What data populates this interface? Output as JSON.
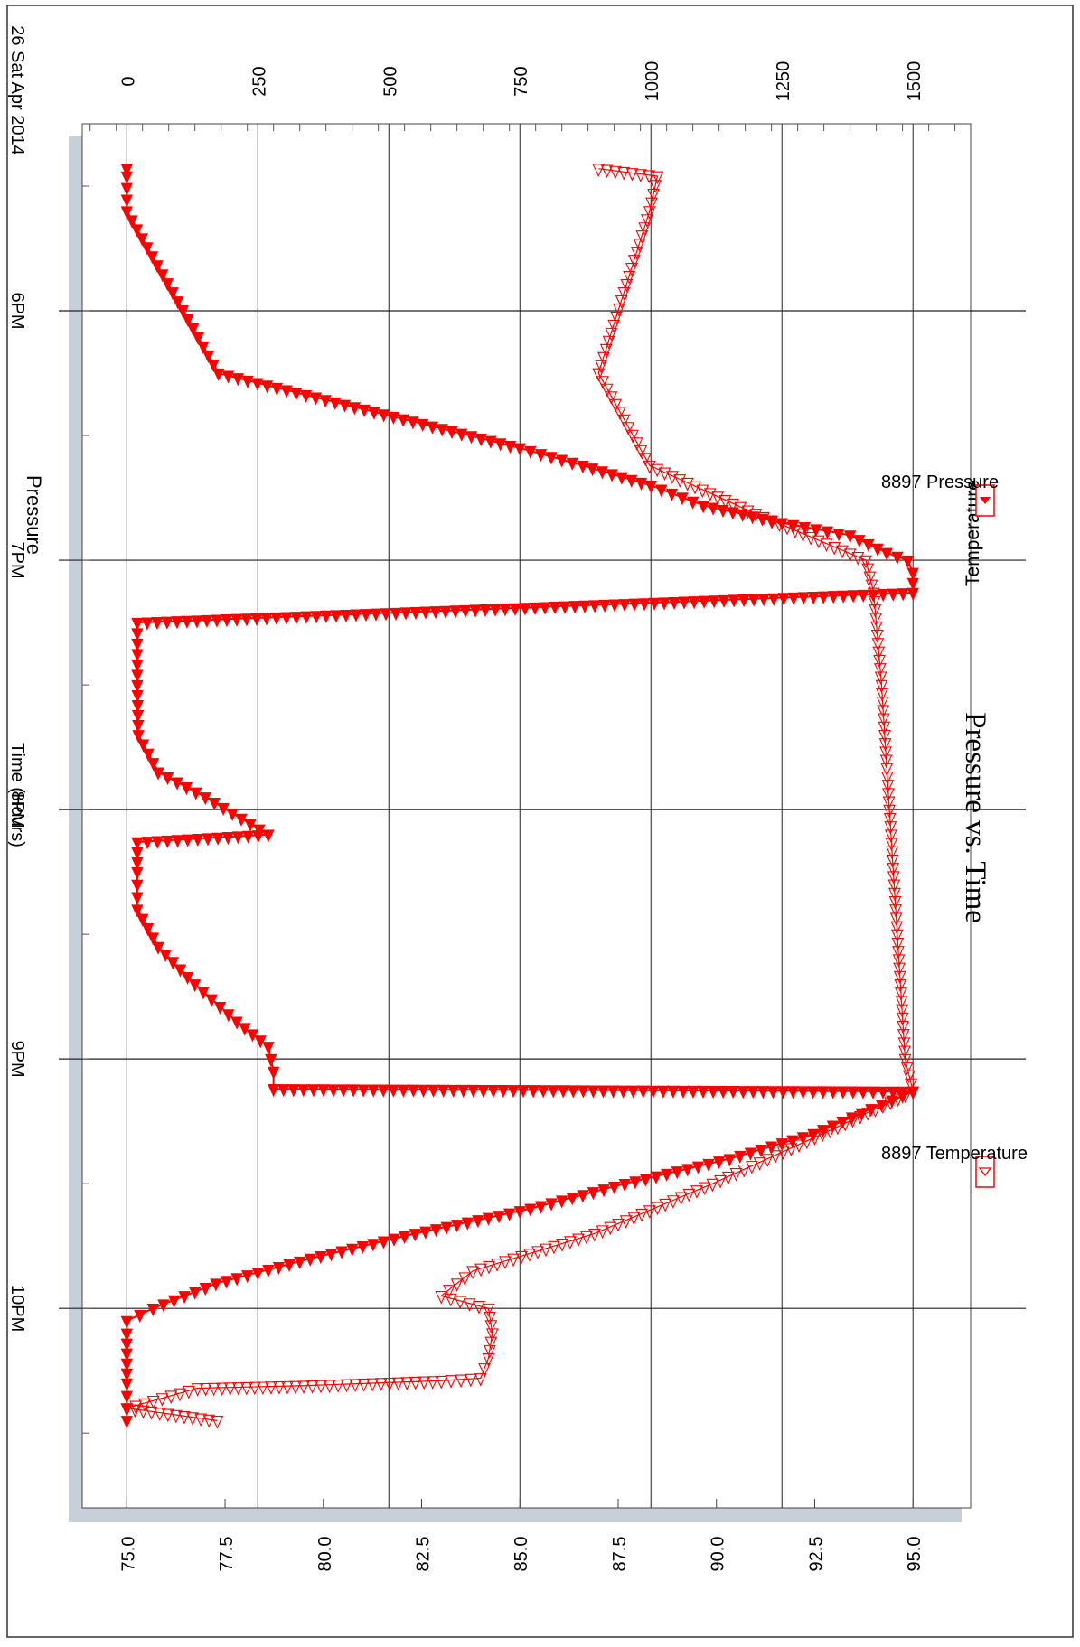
{
  "chart_data": {
    "type": "line",
    "title": "Pressure vs. Time",
    "xlabel": "Time (Hours)",
    "date_label": "26 Sat Apr 2014",
    "ylabel_left": "Pressure",
    "ylabel_right": "Temperature",
    "x_ticks": [
      "6PM",
      "7PM",
      "8PM",
      "9PM",
      "10PM"
    ],
    "x_tick_hours": [
      18,
      19,
      20,
      21,
      22
    ],
    "xlim_hours": [
      17.25,
      22.8
    ],
    "pressure_ticks": [
      "0",
      "250",
      "500",
      "750",
      "1000",
      "1250",
      "1500"
    ],
    "pressure_tick_values": [
      0,
      250,
      500,
      750,
      1000,
      1250,
      1500
    ],
    "pressure_range": [
      -85,
      1610
    ],
    "temperature_ticks": [
      "75.0",
      "77.5",
      "80.0",
      "82.5",
      "85.0",
      "87.5",
      "90.0",
      "92.5",
      "95.0"
    ],
    "temperature_tick_values": [
      75.0,
      77.5,
      80.0,
      82.5,
      85.0,
      87.5,
      90.0,
      92.5,
      95.0
    ],
    "grid": true,
    "legend_placement": "right",
    "series": [
      {
        "name": "8897 Pressure",
        "axis": "pressure",
        "marker": "filled-triangle",
        "color": "#ff0000",
        "x_hours": [
          17.43,
          17.46,
          17.6,
          18.25,
          18.55,
          18.62,
          18.7,
          18.78,
          18.85,
          18.9,
          18.97,
          19.0,
          19.05,
          19.13,
          19.25,
          19.5,
          19.7,
          19.85,
          19.95,
          20.1,
          20.13,
          20.25,
          20.4,
          20.55,
          20.7,
          20.85,
          20.95,
          21.05,
          21.12,
          21.13,
          21.2,
          21.3,
          21.4,
          21.5,
          21.6,
          21.7,
          21.8,
          21.9,
          22.0,
          22.05,
          22.1,
          22.3,
          22.45
        ],
        "pressure": [
          0,
          0,
          0,
          175,
          750,
          870,
          1000,
          1100,
          1250,
          1380,
          1450,
          1490,
          1500,
          1500,
          20,
          20,
          22,
          60,
          150,
          270,
          20,
          20,
          20,
          60,
          130,
          210,
          270,
          280,
          280,
          1500,
          1420,
          1310,
          1150,
          950,
          770,
          550,
          350,
          170,
          50,
          0,
          0,
          0,
          0
        ]
      },
      {
        "name": "8897 Temperature",
        "axis": "temperature",
        "marker": "open-triangle",
        "color": "#ff0000",
        "x_hours": [
          17.43,
          17.46,
          17.6,
          18.25,
          18.62,
          18.8,
          19.0,
          19.13,
          19.5,
          20.0,
          20.5,
          21.0,
          21.13,
          21.3,
          21.5,
          21.7,
          21.85,
          21.95,
          22.0,
          22.1,
          22.2,
          22.28,
          22.29,
          22.31,
          22.32,
          22.36,
          22.4,
          22.45
        ],
        "temperature": [
          87.0,
          88.5,
          88.3,
          87.0,
          88.3,
          90.8,
          93.8,
          94.0,
          94.2,
          94.4,
          94.6,
          94.8,
          95.0,
          92.7,
          89.9,
          86.9,
          83.8,
          83.0,
          84.2,
          84.3,
          84.2,
          84.0,
          83.0,
          79.5,
          76.8,
          75.9,
          75.0,
          77.3
        ]
      }
    ]
  }
}
